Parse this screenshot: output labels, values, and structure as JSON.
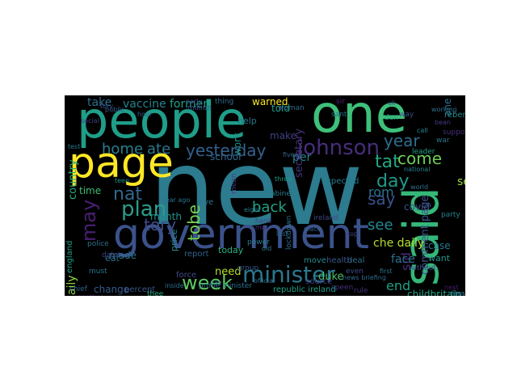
{
  "wordcloud": {
    "words": [
      {
        "text": "new",
        "color": "#2c7b8e"
      },
      {
        "text": "people",
        "color": "#1f9e89"
      },
      {
        "text": "one",
        "color": "#3ec07a"
      },
      {
        "text": "government",
        "color": "#3b528b"
      },
      {
        "text": "said",
        "color": "#35b779"
      },
      {
        "text": "page",
        "color": "#fde725"
      },
      {
        "text": "johnson",
        "color": "#472d7b"
      },
      {
        "text": "minister",
        "color": "#2a788e"
      },
      {
        "text": "week",
        "color": "#5ec962"
      },
      {
        "text": "plan",
        "color": "#2b9c8a"
      },
      {
        "text": "yesterday",
        "color": "#34618d"
      },
      {
        "text": "tory",
        "color": "#3e4a89"
      },
      {
        "text": "home",
        "color": "#27808e"
      },
      {
        "text": "ate",
        "color": "#2a788e"
      },
      {
        "text": "nat",
        "color": "#31688e"
      },
      {
        "text": "may",
        "color": "#481f70"
      },
      {
        "text": "day",
        "color": "#1f9a8a"
      },
      {
        "text": "year",
        "color": "#2e6e8e"
      },
      {
        "text": "tat",
        "color": "#22a884"
      },
      {
        "text": "say",
        "color": "#3b528b"
      },
      {
        "text": "come",
        "color": "#6ece58"
      },
      {
        "text": "rom",
        "color": "#2d708e"
      },
      {
        "text": "back",
        "color": "#20a386"
      },
      {
        "text": "see",
        "color": "#23898e"
      },
      {
        "text": "tobe",
        "color": "#74d055"
      },
      {
        "text": "end",
        "color": "#1fa187"
      },
      {
        "text": "sid",
        "color": "#482878"
      },
      {
        "text": "daily",
        "color": "#8fd744"
      },
      {
        "text": "che daily",
        "color": "#b5de2b"
      },
      {
        "text": "face",
        "color": "#2c728e"
      },
      {
        "text": "covid",
        "color": "#3b528b"
      },
      {
        "text": "set",
        "color": "#9dd93b"
      },
      {
        "text": "take",
        "color": "#2e6f8e"
      },
      {
        "text": "vaccine",
        "color": "#26828e"
      },
      {
        "text": "former",
        "color": "#1fa088"
      },
      {
        "text": "told",
        "color": "#1f9e89"
      },
      {
        "text": "per",
        "color": "#25858e"
      },
      {
        "text": "country",
        "color": "#27ad81"
      },
      {
        "text": "work",
        "color": "#1f948c"
      },
      {
        "text": "school",
        "color": "#31688e"
      },
      {
        "text": "month",
        "color": "#20928c"
      },
      {
        "text": "price",
        "color": "#238a8d"
      },
      {
        "text": "made",
        "color": "#2c718e"
      },
      {
        "text": "change",
        "color": "#365c8d"
      },
      {
        "text": "need",
        "color": "#b5de2b"
      },
      {
        "text": "time",
        "color": "#3dbc74"
      },
      {
        "text": "england",
        "color": "#1fa187"
      },
      {
        "text": "secretary",
        "color": "#46337e"
      },
      {
        "text": "warned",
        "color": "#fde725"
      },
      {
        "text": "help",
        "color": "#29798e"
      },
      {
        "text": "report",
        "color": "#33638d"
      },
      {
        "text": "today",
        "color": "#2ab07f"
      },
      {
        "text": "ave",
        "color": "#2a788e"
      },
      {
        "text": "force",
        "color": "#3e4989"
      },
      {
        "text": "republic ireland",
        "color": "#1fa088"
      },
      {
        "text": "childbritain",
        "color": "#22a785"
      },
      {
        "text": "expected",
        "color": "#277f8e"
      },
      {
        "text": "comment page",
        "color": "#3b528b"
      },
      {
        "text": "case",
        "color": "#2a768e"
      },
      {
        "text": "want",
        "color": "#1f978b"
      },
      {
        "text": "move",
        "color": "#238a8d"
      },
      {
        "text": "deal",
        "color": "#2e6e8e"
      },
      {
        "text": "health",
        "color": "#37598c"
      },
      {
        "text": "duke",
        "color": "#4ac16d"
      },
      {
        "text": "source",
        "color": "#424186"
      },
      {
        "text": "percent",
        "color": "#39568c"
      },
      {
        "text": "chief",
        "color": "#33638d"
      },
      {
        "text": "must",
        "color": "#2a768e"
      },
      {
        "text": "speen",
        "color": "#46327e"
      },
      {
        "text": "rule",
        "color": "#46337e"
      },
      {
        "text": "make",
        "color": "#433e85"
      },
      {
        "text": "leader",
        "color": "#1fa287"
      },
      {
        "text": "support",
        "color": "#472f7d"
      },
      {
        "text": "party",
        "color": "#25838e"
      },
      {
        "text": "cabinet",
        "color": "#287d8e"
      },
      {
        "text": "prime minister",
        "color": "#2c728e"
      },
      {
        "text": "news briefing",
        "color": "#2f6b8e"
      },
      {
        "text": "national",
        "color": "#277e8e"
      },
      {
        "text": "tha",
        "color": "#31688e"
      },
      {
        "text": "eat",
        "color": "#2d718e"
      },
      {
        "text": "without",
        "color": "#3d4d8a"
      },
      {
        "text": "ane",
        "color": "#2f6c8e"
      },
      {
        "text": "reben",
        "color": "#23898e"
      },
      {
        "text": "another",
        "color": "#48186a"
      },
      {
        "text": "world",
        "color": "#2c728e"
      },
      {
        "text": "data",
        "color": "#3f4788"
      },
      {
        "text": "dan",
        "color": "#23a983"
      },
      {
        "text": "thee",
        "color": "#27ad81"
      },
      {
        "text": "war",
        "color": "#2b748e"
      },
      {
        "text": "inside",
        "color": "#2c718e"
      },
      {
        "text": "group",
        "color": "#38588c"
      },
      {
        "text": "even",
        "color": "#3e4c8a"
      },
      {
        "text": "first",
        "color": "#2b758e"
      },
      {
        "text": "ireland",
        "color": "#3f4889"
      },
      {
        "text": "million",
        "color": "#3c4f8a"
      },
      {
        "text": "mean",
        "color": "#424086"
      },
      {
        "text": "lockdown",
        "color": "#2e6f8e"
      },
      {
        "text": "woman",
        "color": "#2f6b8e"
      },
      {
        "text": "public",
        "color": "#355f8d"
      },
      {
        "text": "bean",
        "color": "#443983"
      },
      {
        "text": "fiver",
        "color": "#33638d"
      },
      {
        "text": "sant",
        "color": "#2c728e"
      },
      {
        "text": "three",
        "color": "#1e9c89"
      },
      {
        "text": "eight",
        "color": "#297b8e"
      },
      {
        "text": "hand",
        "color": "#414487"
      },
      {
        "text": "teen",
        "color": "#21918c"
      },
      {
        "text": "place",
        "color": "#355e8d"
      },
      {
        "text": "mar",
        "color": "#46307e"
      },
      {
        "text": "last",
        "color": "#2f6b8e"
      },
      {
        "text": "working",
        "color": "#2d708e"
      },
      {
        "text": "way",
        "color": "#3a538b"
      },
      {
        "text": "thing",
        "color": "#2e6e8e"
      },
      {
        "text": "year ago",
        "color": "#2b758e"
      },
      {
        "text": "power",
        "color": "#287c8e"
      },
      {
        "text": "test",
        "color": "#2a778e"
      },
      {
        "text": "social",
        "color": "#433d84"
      },
      {
        "text": "top",
        "color": "#404688"
      },
      {
        "text": "official",
        "color": "#2d718e"
      },
      {
        "text": "early",
        "color": "#3c508b"
      },
      {
        "text": "hour",
        "color": "#34618d"
      },
      {
        "text": "pay",
        "color": "#2e6e8e"
      },
      {
        "text": "sir",
        "color": "#482374"
      },
      {
        "text": "show",
        "color": "#297a8e"
      },
      {
        "text": "police",
        "color": "#2d708e"
      },
      {
        "text": "tory",
        "color": "#39568c"
      },
      {
        "text": "call",
        "color": "#24868e"
      },
      {
        "text": "old",
        "color": "#2a788e"
      },
      {
        "text": "next",
        "color": "#481b6d"
      },
      {
        "text": "uk",
        "color": "#3b518b"
      }
    ]
  }
}
